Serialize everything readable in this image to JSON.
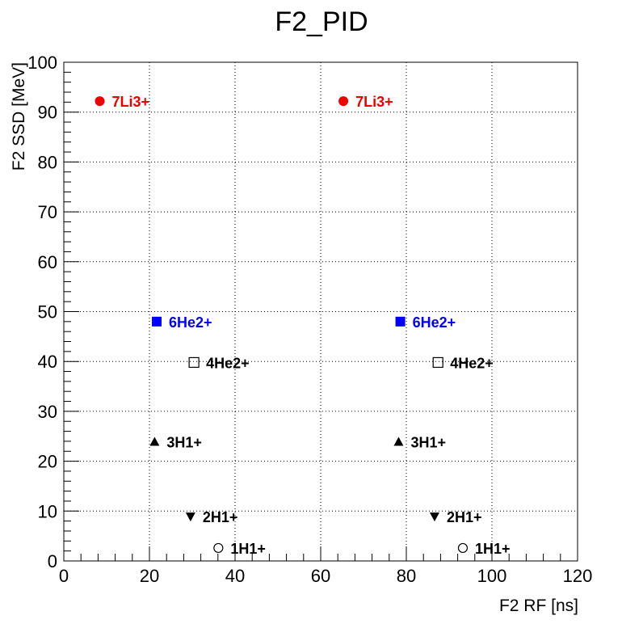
{
  "chart_data": {
    "type": "scatter",
    "title": "F2_PID",
    "xlabel": "F2 RF [ns]",
    "ylabel": "F2 SSD [MeV]",
    "xlim": [
      0,
      120
    ],
    "ylim": [
      0,
      100
    ],
    "grid": true,
    "x_ticks": [
      "0",
      "20",
      "40",
      "60",
      "80",
      "100",
      "120"
    ],
    "y_ticks": [
      "0",
      "10",
      "20",
      "30",
      "40",
      "50",
      "60",
      "70",
      "80",
      "90",
      "100"
    ],
    "points": [
      {
        "label": "7Li3+",
        "x": 8.4,
        "y": 92.2,
        "marker": "filled-circle",
        "color": "#ee0000"
      },
      {
        "label": "6He2+",
        "x": 21.7,
        "y": 48.0,
        "marker": "filled-square",
        "color": "#0000ff"
      },
      {
        "label": "4He2+",
        "x": 30.4,
        "y": 39.8,
        "marker": "open-square",
        "color": "#000000"
      },
      {
        "label": "3H1+",
        "x": 21.2,
        "y": 23.9,
        "marker": "triangle-up",
        "color": "#000000"
      },
      {
        "label": "2H1+",
        "x": 29.6,
        "y": 8.9,
        "marker": "triangle-down",
        "color": "#000000"
      },
      {
        "label": "1H1+",
        "x": 36.1,
        "y": 2.6,
        "marker": "open-circle",
        "color": "#000000"
      },
      {
        "label": "7Li3+",
        "x": 65.3,
        "y": 92.2,
        "marker": "filled-circle",
        "color": "#ee0000"
      },
      {
        "label": "6He2+",
        "x": 78.6,
        "y": 48.0,
        "marker": "filled-square",
        "color": "#0000ff"
      },
      {
        "label": "4He2+",
        "x": 87.4,
        "y": 39.8,
        "marker": "open-square",
        "color": "#000000"
      },
      {
        "label": "3H1+",
        "x": 78.2,
        "y": 23.9,
        "marker": "triangle-up",
        "color": "#000000"
      },
      {
        "label": "2H1+",
        "x": 86.6,
        "y": 8.9,
        "marker": "triangle-down",
        "color": "#000000"
      },
      {
        "label": "1H1+",
        "x": 93.2,
        "y": 2.6,
        "marker": "open-circle",
        "color": "#000000"
      }
    ]
  }
}
